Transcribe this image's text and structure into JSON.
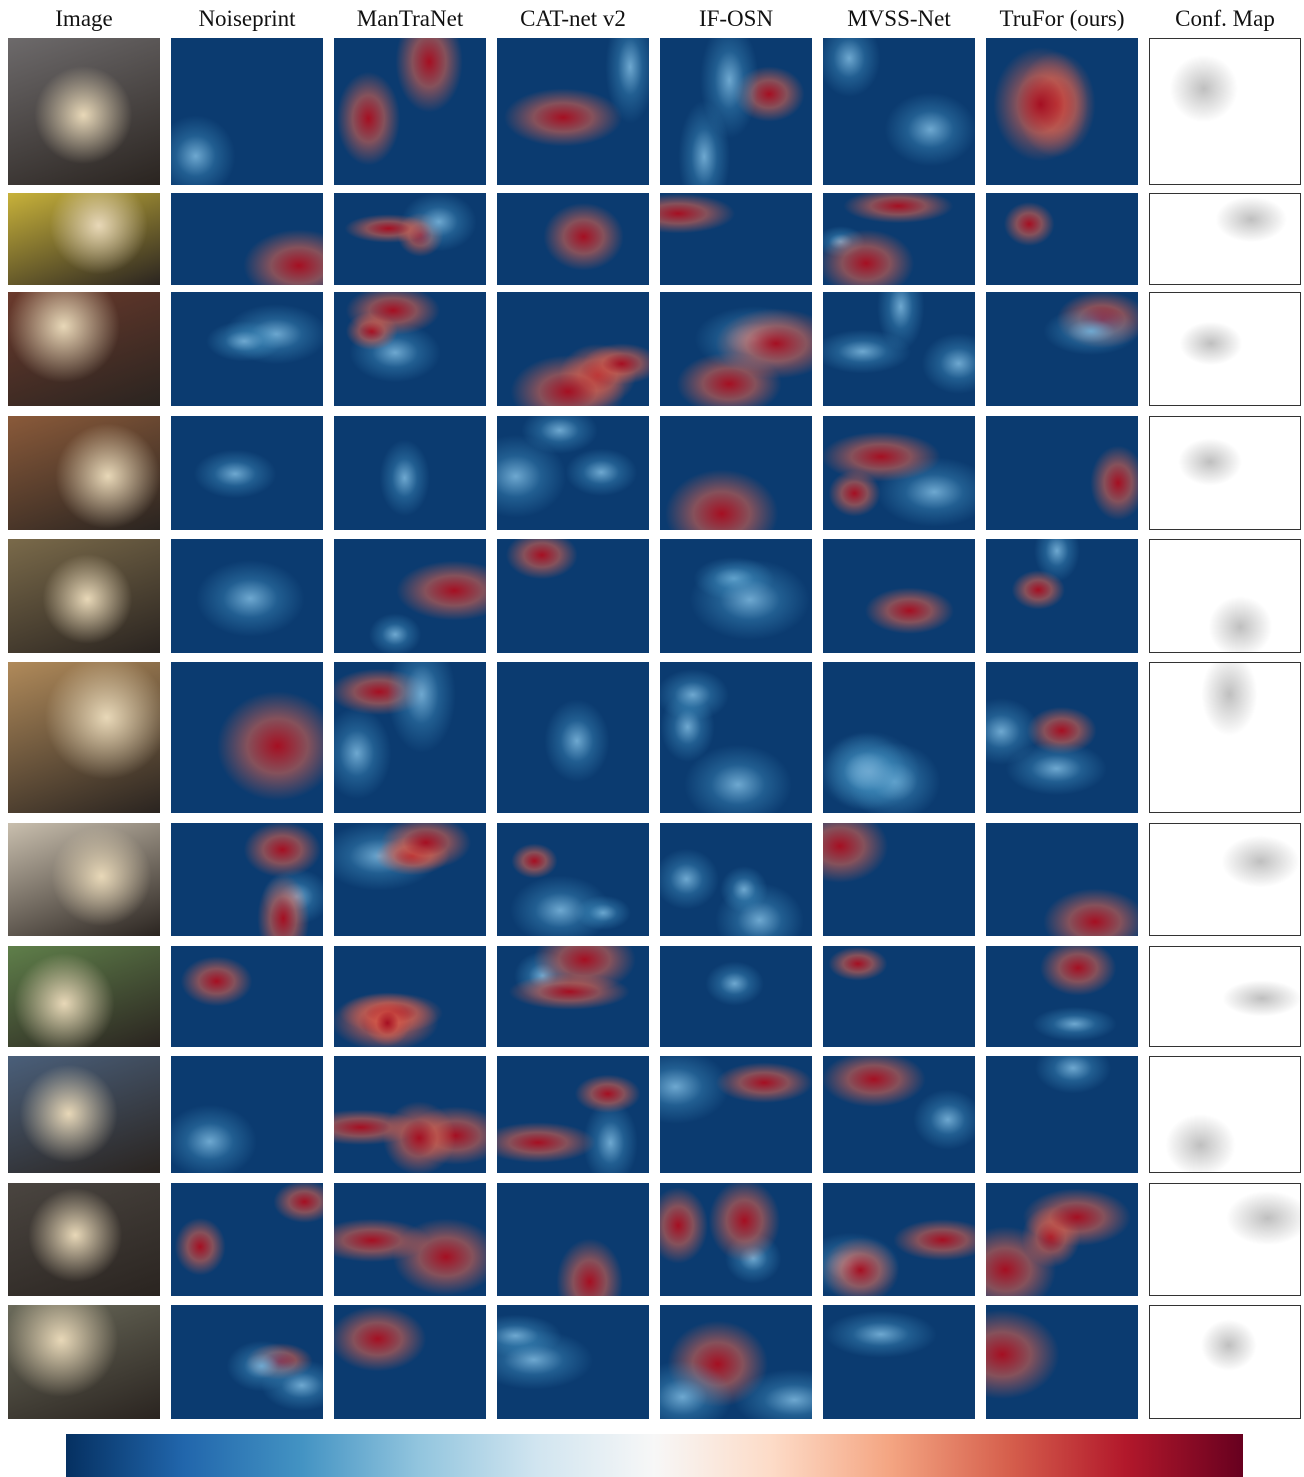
{
  "header": {
    "columns": [
      "Image",
      "Noiseprint",
      "ManTraNet",
      "CAT-net v2",
      "IF-OSN",
      "MVSS-Net",
      "TruFor (ours)",
      "Conf. Map"
    ]
  }
}
